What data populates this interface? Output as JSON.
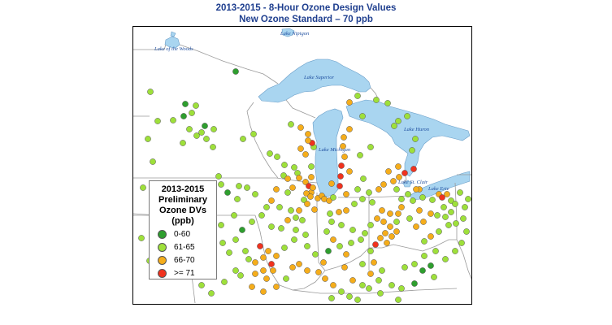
{
  "title": {
    "line1": "2013-2015 - 8-Hour Ozone Design Values",
    "line2": "New Ozone Standard – 70 ppb"
  },
  "lakes": {
    "nipigon": "Lake Nipigon",
    "woods": "Lake of the Woods",
    "superior": "Lake Superior",
    "michigan": "Lake Michigan",
    "huron": "Lake Huron",
    "st_clair": "Lake St. Clair",
    "erie": "Lake Erie"
  },
  "legend": {
    "title_line1": "2013-2015",
    "title_line2": "Preliminary",
    "title_line3": "Ozone DVs",
    "title_line4": "(ppb)",
    "items": [
      {
        "label": "0-60",
        "color": "#2e9e2e"
      },
      {
        "label": "61-65",
        "color": "#9ee03a"
      },
      {
        "label": "66-70",
        "color": "#f5ad1b"
      },
      {
        "label": ">= 71",
        "color": "#f0321e"
      }
    ]
  },
  "colors": {
    "water": "#a9d5f0",
    "boundary": "#9a9a9a",
    "lake_outline": "#6a9ec8"
  },
  "monitors_by_category": {
    "0-60": 24,
    "61-65": 92,
    "66-70": 96,
    ">= 71": 13
  }
}
